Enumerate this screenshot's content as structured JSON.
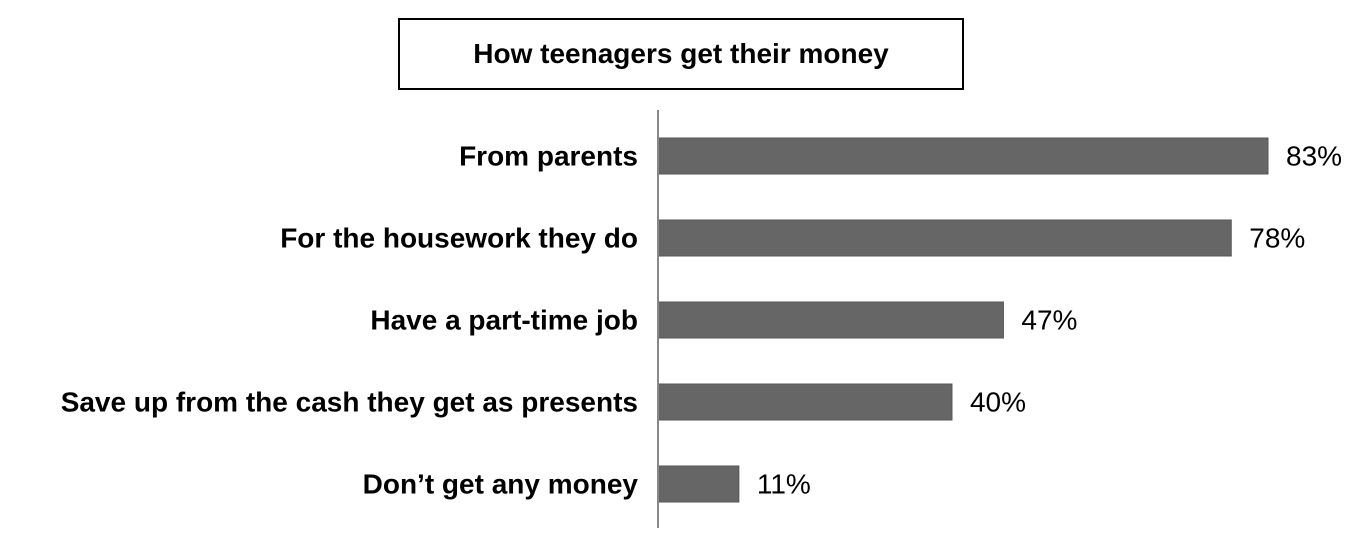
{
  "chart_data": {
    "type": "bar",
    "orientation": "horizontal",
    "title": "How teenagers get their money",
    "categories": [
      "From parents",
      "For the housework they do",
      "Have a part-time job",
      "Save up from the cash they get as presents",
      "Don’t get any money"
    ],
    "values": [
      83,
      78,
      47,
      40,
      11
    ],
    "value_labels": [
      "83%",
      "78%",
      "47%",
      "40%",
      "11%"
    ],
    "unit": "%",
    "xlabel": "",
    "ylabel": "",
    "xlim": [
      0,
      100
    ],
    "grid": false,
    "legend": "none",
    "bar_color": "#666666"
  }
}
